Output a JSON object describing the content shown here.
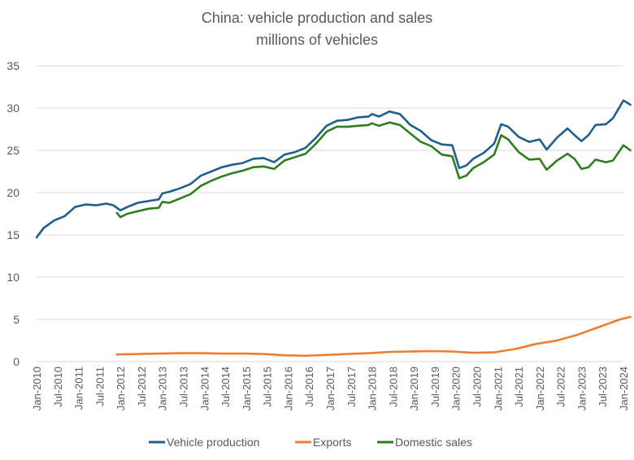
{
  "chart_data": {
    "type": "line",
    "title": [
      "China: vehicle production and sales",
      "millions of vehicles"
    ],
    "xlabel": "",
    "ylabel": "",
    "ylim": [
      0,
      35
    ],
    "yticks": [
      0,
      5,
      10,
      15,
      20,
      25,
      30,
      35
    ],
    "grid": "horizontal",
    "legend_position": "bottom",
    "x_tick_labels": [
      "Jan-2010",
      "Jul-2010",
      "Jan-2011",
      "Jul-2011",
      "Jan-2012",
      "Jul-2012",
      "Jan-2013",
      "Jul-2013",
      "Jan-2014",
      "Jul-2014",
      "Jan-2015",
      "Jul-2015",
      "Jan-2016",
      "Jul-2016",
      "Jan-2017",
      "Jul-2017",
      "Jan-2018",
      "Jul-2018",
      "Jan-2019",
      "Jul-2019",
      "Jan-2020",
      "Jul-2020",
      "Jan-2021",
      "Jul-2021",
      "Jan-2022",
      "Jul-2022",
      "Jan-2023",
      "Jul-2023",
      "Jan-2024"
    ],
    "series": [
      {
        "name": "Vehicle production",
        "color": "#1f5f8b",
        "points": [
          [
            "2010-01",
            14.7
          ],
          [
            "2010-03",
            15.8
          ],
          [
            "2010-06",
            16.7
          ],
          [
            "2010-09",
            17.2
          ],
          [
            "2010-12",
            18.3
          ],
          [
            "2011-03",
            18.6
          ],
          [
            "2011-06",
            18.5
          ],
          [
            "2011-09",
            18.7
          ],
          [
            "2011-11",
            18.5
          ],
          [
            "2012-01",
            17.9
          ],
          [
            "2012-03",
            18.3
          ],
          [
            "2012-06",
            18.8
          ],
          [
            "2012-09",
            19.0
          ],
          [
            "2012-12",
            19.2
          ],
          [
            "2013-01",
            19.9
          ],
          [
            "2013-03",
            20.1
          ],
          [
            "2013-06",
            20.5
          ],
          [
            "2013-09",
            21.0
          ],
          [
            "2013-12",
            22.0
          ],
          [
            "2014-03",
            22.5
          ],
          [
            "2014-06",
            23.0
          ],
          [
            "2014-09",
            23.3
          ],
          [
            "2014-12",
            23.5
          ],
          [
            "2015-03",
            24.0
          ],
          [
            "2015-06",
            24.1
          ],
          [
            "2015-09",
            23.6
          ],
          [
            "2015-12",
            24.5
          ],
          [
            "2016-03",
            24.8
          ],
          [
            "2016-06",
            25.3
          ],
          [
            "2016-09",
            26.5
          ],
          [
            "2016-12",
            27.9
          ],
          [
            "2017-03",
            28.5
          ],
          [
            "2017-06",
            28.6
          ],
          [
            "2017-09",
            28.9
          ],
          [
            "2017-12",
            29.0
          ],
          [
            "2018-01",
            29.3
          ],
          [
            "2018-03",
            29.0
          ],
          [
            "2018-06",
            29.6
          ],
          [
            "2018-09",
            29.3
          ],
          [
            "2018-12",
            28.0
          ],
          [
            "2019-03",
            27.3
          ],
          [
            "2019-06",
            26.2
          ],
          [
            "2019-09",
            25.7
          ],
          [
            "2019-12",
            25.6
          ],
          [
            "2020-02",
            22.9
          ],
          [
            "2020-04",
            23.2
          ],
          [
            "2020-06",
            24.0
          ],
          [
            "2020-09",
            24.7
          ],
          [
            "2020-12",
            25.8
          ],
          [
            "2021-02",
            28.1
          ],
          [
            "2021-04",
            27.8
          ],
          [
            "2021-07",
            26.6
          ],
          [
            "2021-10",
            26.0
          ],
          [
            "2022-01",
            26.3
          ],
          [
            "2022-03",
            25.1
          ],
          [
            "2022-06",
            26.5
          ],
          [
            "2022-09",
            27.6
          ],
          [
            "2022-11",
            26.8
          ],
          [
            "2023-01",
            26.1
          ],
          [
            "2023-03",
            26.8
          ],
          [
            "2023-05",
            28.0
          ],
          [
            "2023-08",
            28.1
          ],
          [
            "2023-10",
            28.8
          ],
          [
            "2024-01",
            30.9
          ],
          [
            "2024-03",
            30.4
          ]
        ]
      },
      {
        "name": "Exports",
        "color": "#ed7d31",
        "points": [
          [
            "2011-12",
            0.85
          ],
          [
            "2012-06",
            0.9
          ],
          [
            "2012-12",
            0.95
          ],
          [
            "2013-06",
            1.0
          ],
          [
            "2013-12",
            1.0
          ],
          [
            "2014-06",
            0.95
          ],
          [
            "2014-12",
            0.95
          ],
          [
            "2015-06",
            0.9
          ],
          [
            "2015-12",
            0.75
          ],
          [
            "2016-06",
            0.7
          ],
          [
            "2016-12",
            0.8
          ],
          [
            "2017-06",
            0.9
          ],
          [
            "2017-12",
            1.0
          ],
          [
            "2018-06",
            1.15
          ],
          [
            "2018-12",
            1.2
          ],
          [
            "2019-06",
            1.25
          ],
          [
            "2019-12",
            1.2
          ],
          [
            "2020-06",
            1.05
          ],
          [
            "2020-12",
            1.1
          ],
          [
            "2021-06",
            1.5
          ],
          [
            "2021-12",
            2.1
          ],
          [
            "2022-06",
            2.5
          ],
          [
            "2022-12",
            3.2
          ],
          [
            "2023-06",
            4.1
          ],
          [
            "2023-12",
            5.0
          ],
          [
            "2024-03",
            5.3
          ]
        ]
      },
      {
        "name": "Domestic sales",
        "color": "#2e7d1e",
        "points": [
          [
            "2011-12",
            17.6
          ],
          [
            "2012-01",
            17.1
          ],
          [
            "2012-03",
            17.5
          ],
          [
            "2012-06",
            17.8
          ],
          [
            "2012-09",
            18.1
          ],
          [
            "2012-12",
            18.2
          ],
          [
            "2013-01",
            18.9
          ],
          [
            "2013-03",
            18.8
          ],
          [
            "2013-06",
            19.3
          ],
          [
            "2013-09",
            19.8
          ],
          [
            "2013-12",
            20.8
          ],
          [
            "2014-03",
            21.4
          ],
          [
            "2014-06",
            21.9
          ],
          [
            "2014-09",
            22.3
          ],
          [
            "2014-12",
            22.6
          ],
          [
            "2015-03",
            23.0
          ],
          [
            "2015-06",
            23.1
          ],
          [
            "2015-09",
            22.8
          ],
          [
            "2015-12",
            23.8
          ],
          [
            "2016-03",
            24.2
          ],
          [
            "2016-06",
            24.6
          ],
          [
            "2016-09",
            25.8
          ],
          [
            "2016-12",
            27.2
          ],
          [
            "2017-03",
            27.8
          ],
          [
            "2017-06",
            27.8
          ],
          [
            "2017-09",
            27.9
          ],
          [
            "2017-12",
            28.0
          ],
          [
            "2018-01",
            28.2
          ],
          [
            "2018-03",
            27.9
          ],
          [
            "2018-06",
            28.3
          ],
          [
            "2018-09",
            28.0
          ],
          [
            "2018-12",
            27.0
          ],
          [
            "2019-03",
            26.0
          ],
          [
            "2019-06",
            25.5
          ],
          [
            "2019-09",
            24.5
          ],
          [
            "2019-12",
            24.3
          ],
          [
            "2020-02",
            21.7
          ],
          [
            "2020-04",
            22.0
          ],
          [
            "2020-06",
            22.9
          ],
          [
            "2020-09",
            23.6
          ],
          [
            "2020-12",
            24.5
          ],
          [
            "2021-02",
            26.8
          ],
          [
            "2021-04",
            26.3
          ],
          [
            "2021-07",
            24.8
          ],
          [
            "2021-10",
            23.9
          ],
          [
            "2022-01",
            24.0
          ],
          [
            "2022-03",
            22.7
          ],
          [
            "2022-06",
            23.8
          ],
          [
            "2022-09",
            24.6
          ],
          [
            "2022-11",
            24.0
          ],
          [
            "2023-01",
            22.8
          ],
          [
            "2023-03",
            23.0
          ],
          [
            "2023-05",
            23.9
          ],
          [
            "2023-08",
            23.6
          ],
          [
            "2023-10",
            23.8
          ],
          [
            "2024-01",
            25.6
          ],
          [
            "2024-03",
            25.0
          ]
        ]
      }
    ]
  }
}
